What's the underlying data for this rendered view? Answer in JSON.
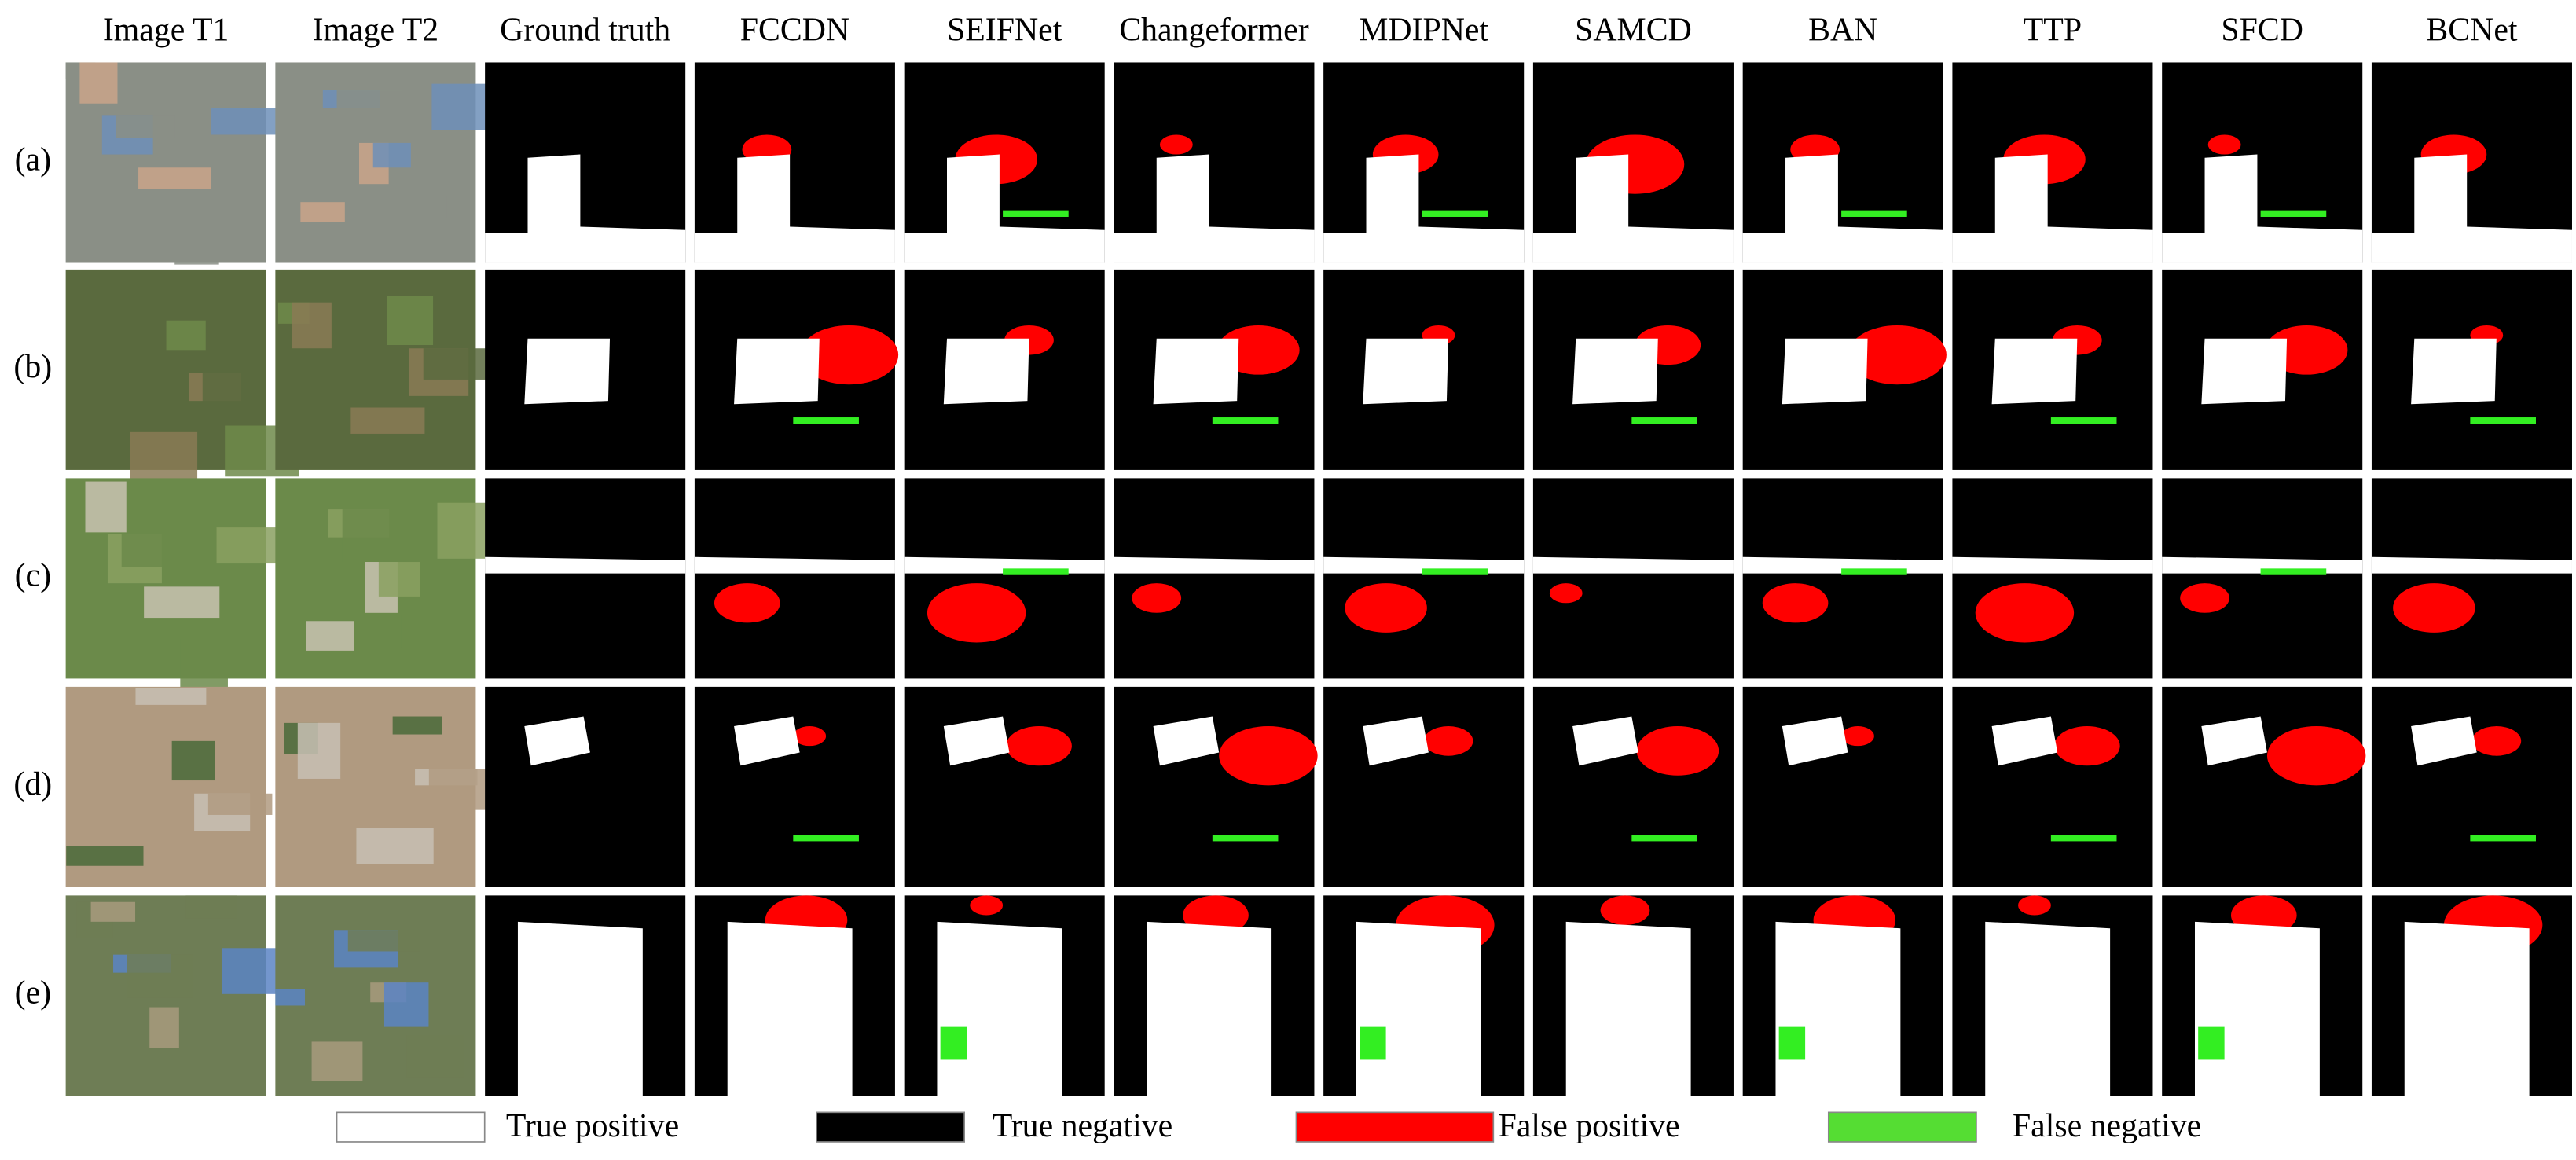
{
  "header": {
    "columns": [
      "Image T1",
      "Image T2",
      "Ground truth",
      "FCCDN",
      "SEIFNet",
      "Changeformer",
      "MDIPNet",
      "SAMCD",
      "BAN",
      "TTP",
      "SFCD",
      "BCNet"
    ]
  },
  "rows": {
    "labels": [
      "(a)",
      "(b)",
      "(c)",
      "(d)",
      "(e)"
    ]
  },
  "legend": {
    "items": [
      "True positive",
      "True negative",
      "False positive",
      "False negative"
    ]
  }
}
